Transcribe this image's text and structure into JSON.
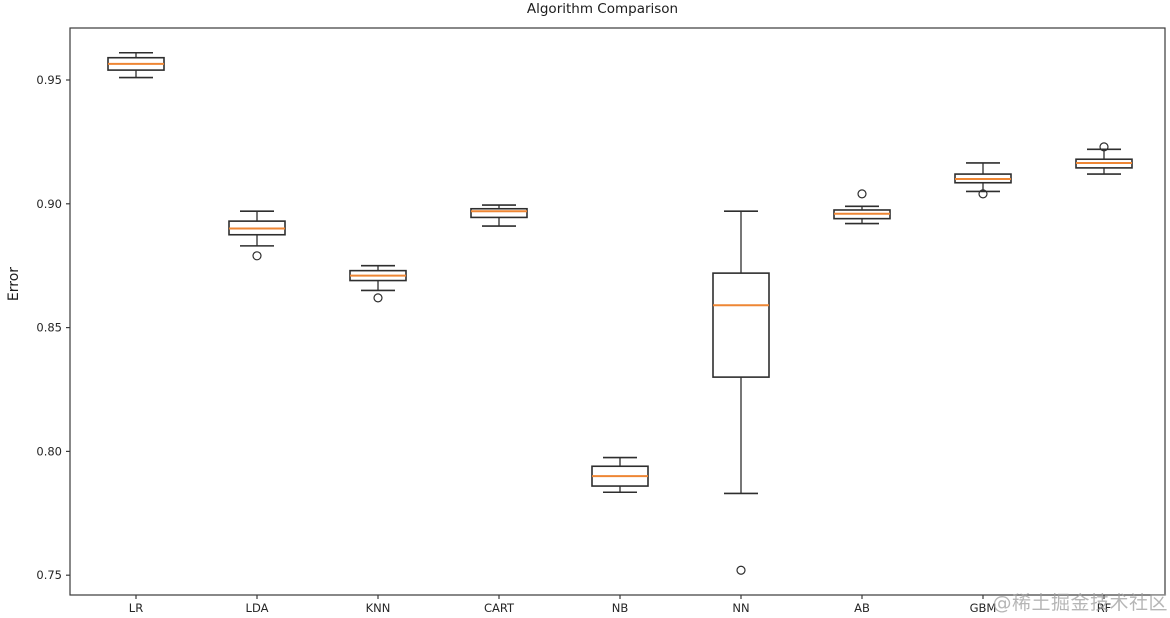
{
  "figure": {
    "title": "Algorithm Comparison",
    "watermark": {
      "text": "@稀土掘金技术社区",
      "color": "#9b9b9b"
    }
  },
  "chart_data": {
    "type": "boxplot",
    "title": "Algorithm Comparison",
    "xlabel": "",
    "ylabel": "Error",
    "categories": [
      "LR",
      "LDA",
      "KNN",
      "CART",
      "NB",
      "NN",
      "AB",
      "GBM",
      "RF"
    ],
    "yticks": [
      0.75,
      0.8,
      0.85,
      0.9,
      0.95
    ],
    "ylim": [
      0.742,
      0.971
    ],
    "grid": false,
    "legend": "none",
    "edge_color": "#2e2e2e",
    "median_color": "#ee8634",
    "frame_color": "#3a3a3a",
    "text_color": "#262626",
    "boxes": [
      {
        "label": "LR",
        "whislo": 0.951,
        "q1": 0.954,
        "med": 0.9565,
        "q3": 0.959,
        "whishi": 0.961,
        "fliers": []
      },
      {
        "label": "LDA",
        "whislo": 0.883,
        "q1": 0.8875,
        "med": 0.89,
        "q3": 0.893,
        "whishi": 0.897,
        "fliers": [
          0.879
        ]
      },
      {
        "label": "KNN",
        "whislo": 0.865,
        "q1": 0.869,
        "med": 0.871,
        "q3": 0.873,
        "whishi": 0.875,
        "fliers": [
          0.862
        ]
      },
      {
        "label": "CART",
        "whislo": 0.891,
        "q1": 0.8945,
        "med": 0.897,
        "q3": 0.898,
        "whishi": 0.8995,
        "fliers": []
      },
      {
        "label": "NB",
        "whislo": 0.7835,
        "q1": 0.786,
        "med": 0.79,
        "q3": 0.794,
        "whishi": 0.7975,
        "fliers": []
      },
      {
        "label": "NN",
        "whislo": 0.783,
        "q1": 0.83,
        "med": 0.859,
        "q3": 0.872,
        "whishi": 0.897,
        "fliers": [
          0.752
        ]
      },
      {
        "label": "AB",
        "whislo": 0.892,
        "q1": 0.894,
        "med": 0.896,
        "q3": 0.8975,
        "whishi": 0.899,
        "fliers": [
          0.904
        ]
      },
      {
        "label": "GBM",
        "whislo": 0.905,
        "q1": 0.9085,
        "med": 0.91,
        "q3": 0.912,
        "whishi": 0.9165,
        "fliers": [
          0.904
        ]
      },
      {
        "label": "RF",
        "whislo": 0.912,
        "q1": 0.9145,
        "med": 0.9165,
        "q3": 0.918,
        "whishi": 0.922,
        "fliers": [
          0.923
        ]
      }
    ]
  }
}
